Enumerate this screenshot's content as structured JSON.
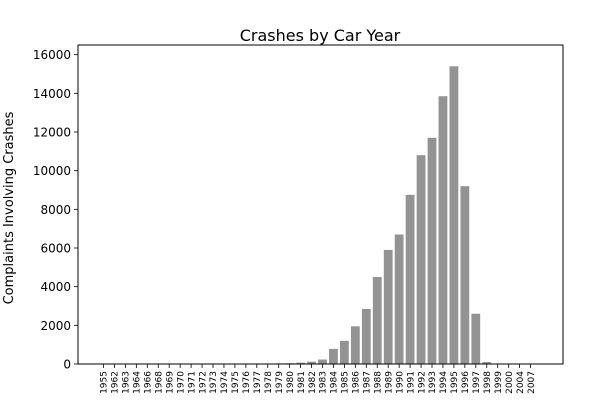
{
  "chart_data": {
    "type": "bar",
    "title": "Crashes by Car Year",
    "xlabel": "",
    "ylabel": "Complaints Involving Crashes",
    "ylim": [
      0,
      16500
    ],
    "yticks": [
      0,
      2000,
      4000,
      6000,
      8000,
      10000,
      12000,
      14000,
      16000
    ],
    "grid": false,
    "legend": "none",
    "bar_color": "#939393",
    "categories": [
      "1955",
      "1962",
      "1963",
      "1964",
      "1966",
      "1968",
      "1969",
      "1970",
      "1971",
      "1972",
      "1973",
      "1974",
      "1975",
      "1976",
      "1977",
      "1978",
      "1979",
      "1980",
      "1981",
      "1982",
      "1983",
      "1984",
      "1985",
      "1986",
      "1987",
      "1988",
      "1989",
      "1990",
      "1991",
      "1992",
      "1993",
      "1994",
      "1995",
      "1996",
      "1997",
      "1998",
      "1999",
      "2000",
      "2004",
      "2007"
    ],
    "values": [
      2,
      2,
      2,
      2,
      2,
      3,
      3,
      4,
      4,
      5,
      6,
      6,
      8,
      10,
      15,
      25,
      30,
      40,
      70,
      120,
      230,
      780,
      1200,
      1950,
      2850,
      4500,
      5900,
      6700,
      8750,
      10800,
      11700,
      13850,
      15400,
      9200,
      2600,
      100,
      10,
      5,
      3,
      2
    ]
  }
}
